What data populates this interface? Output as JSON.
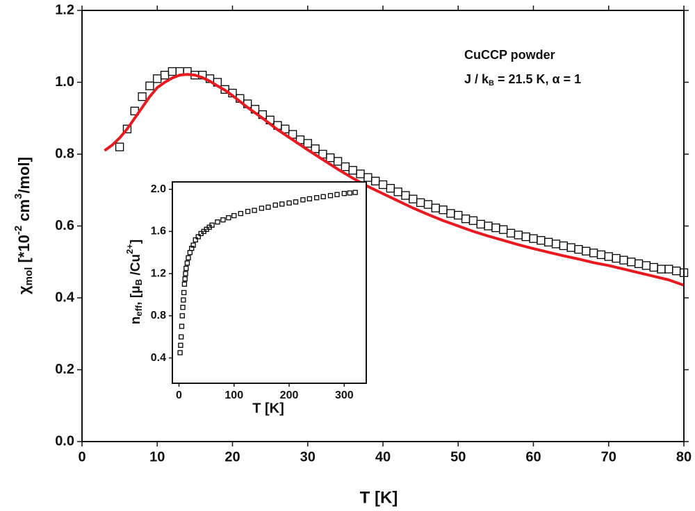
{
  "chart_data": [
    {
      "type": "scatter",
      "x_label": "T [K]",
      "y_label": [
        "χ",
        "mol",
        " [*10",
        "-2",
        " cm",
        "3",
        "/mol]"
      ],
      "annotations": [
        [
          "CuCCP powder"
        ],
        [
          "J / k",
          "B",
          " = 21.5 K, α = 1"
        ]
      ],
      "xlim": [
        0,
        80
      ],
      "ylim": [
        0,
        1.2
      ],
      "xticks": [
        0,
        10,
        20,
        30,
        40,
        50,
        60,
        70,
        80
      ],
      "yticks": [
        {
          "value": 0,
          "label": "0.0"
        },
        0.2,
        0.4,
        0.6,
        0.8,
        {
          "value": 1,
          "label": "1.0"
        },
        1.2
      ],
      "series": [
        {
          "style": "markers",
          "color": "#000000",
          "x": [
            5,
            6,
            7,
            8,
            9,
            10,
            11,
            12,
            13,
            14,
            15,
            16,
            17,
            18,
            19,
            20,
            21,
            22,
            23,
            24,
            25,
            26,
            27,
            28,
            29,
            30,
            31,
            32,
            33,
            34,
            35,
            36,
            37,
            38,
            39,
            40,
            41,
            42,
            43,
            44,
            45,
            46,
            47,
            48,
            49,
            50,
            51,
            52,
            53,
            54,
            55,
            56,
            57,
            58,
            59,
            60,
            61,
            62,
            63,
            64,
            65,
            66,
            67,
            68,
            69,
            70,
            71,
            72,
            73,
            74,
            75,
            76,
            77,
            78,
            79,
            80
          ],
          "values": [
            0.82,
            0.87,
            0.92,
            0.96,
            0.99,
            1.01,
            1.02,
            1.03,
            1.03,
            1.03,
            1.02,
            1.02,
            1.01,
            1.0,
            0.98,
            0.97,
            0.955,
            0.94,
            0.925,
            0.91,
            0.895,
            0.88,
            0.87,
            0.855,
            0.84,
            0.83,
            0.815,
            0.8,
            0.79,
            0.78,
            0.765,
            0.755,
            0.745,
            0.735,
            0.725,
            0.715,
            0.705,
            0.695,
            0.685,
            0.675,
            0.665,
            0.66,
            0.65,
            0.645,
            0.635,
            0.63,
            0.62,
            0.615,
            0.605,
            0.6,
            0.595,
            0.59,
            0.58,
            0.575,
            0.57,
            0.565,
            0.56,
            0.555,
            0.55,
            0.545,
            0.54,
            0.535,
            0.53,
            0.525,
            0.52,
            0.515,
            0.51,
            0.505,
            0.5,
            0.495,
            0.49,
            0.485,
            0.48,
            0.48,
            0.475,
            0.47
          ]
        },
        {
          "style": "line",
          "color": "#e8191f",
          "x": [
            3,
            4,
            5,
            6,
            7,
            8,
            9,
            10,
            11,
            12,
            13,
            14,
            15,
            16,
            17,
            18,
            19,
            20,
            22,
            24,
            26,
            28,
            30,
            32,
            34,
            36,
            38,
            40,
            42,
            44,
            46,
            48,
            50,
            52,
            54,
            56,
            58,
            60,
            62,
            64,
            66,
            68,
            70,
            72,
            74,
            76,
            78,
            80
          ],
          "values": [
            0.81,
            0.825,
            0.845,
            0.87,
            0.9,
            0.93,
            0.96,
            0.985,
            1.0,
            1.012,
            1.02,
            1.022,
            1.02,
            1.013,
            1.003,
            0.99,
            0.978,
            0.963,
            0.93,
            0.9,
            0.868,
            0.84,
            0.812,
            0.785,
            0.758,
            0.733,
            0.71,
            0.69,
            0.67,
            0.65,
            0.632,
            0.615,
            0.6,
            0.585,
            0.572,
            0.56,
            0.548,
            0.537,
            0.527,
            0.517,
            0.508,
            0.498,
            0.49,
            0.48,
            0.47,
            0.46,
            0.45,
            0.435
          ]
        }
      ]
    },
    {
      "type": "scatter",
      "x_label": "T [K]",
      "y_label": [
        "n",
        "eff",
        ", [μ",
        "B",
        " /Cu",
        "2+",
        "]"
      ],
      "xlim": [
        -12,
        340
      ],
      "ylim": [
        0.16,
        2.07
      ],
      "xticks": [
        0,
        100,
        200,
        300
      ],
      "yticks": [
        0.4,
        0.8,
        1.2,
        1.6,
        {
          "value": 2,
          "label": "2.0"
        }
      ],
      "series": [
        {
          "style": "markers",
          "color": "#000000",
          "x": [
            2,
            3,
            4,
            5,
            6,
            7,
            8,
            9,
            10,
            11,
            12,
            13,
            15,
            17,
            20,
            23,
            26,
            30,
            35,
            40,
            45,
            50,
            55,
            60,
            70,
            80,
            90,
            100,
            112,
            125,
            137,
            150,
            162,
            175,
            187,
            200,
            212,
            225,
            237,
            250,
            262,
            275,
            287,
            300,
            310,
            320
          ],
          "values": [
            0.45,
            0.52,
            0.6,
            0.7,
            0.8,
            0.88,
            0.95,
            1.02,
            1.1,
            1.15,
            1.2,
            1.25,
            1.3,
            1.35,
            1.4,
            1.44,
            1.47,
            1.52,
            1.55,
            1.58,
            1.6,
            1.62,
            1.64,
            1.66,
            1.69,
            1.71,
            1.73,
            1.75,
            1.77,
            1.79,
            1.8,
            1.82,
            1.83,
            1.85,
            1.86,
            1.87,
            1.88,
            1.9,
            1.91,
            1.92,
            1.93,
            1.94,
            1.95,
            1.96,
            1.965,
            1.97
          ]
        }
      ]
    }
  ]
}
